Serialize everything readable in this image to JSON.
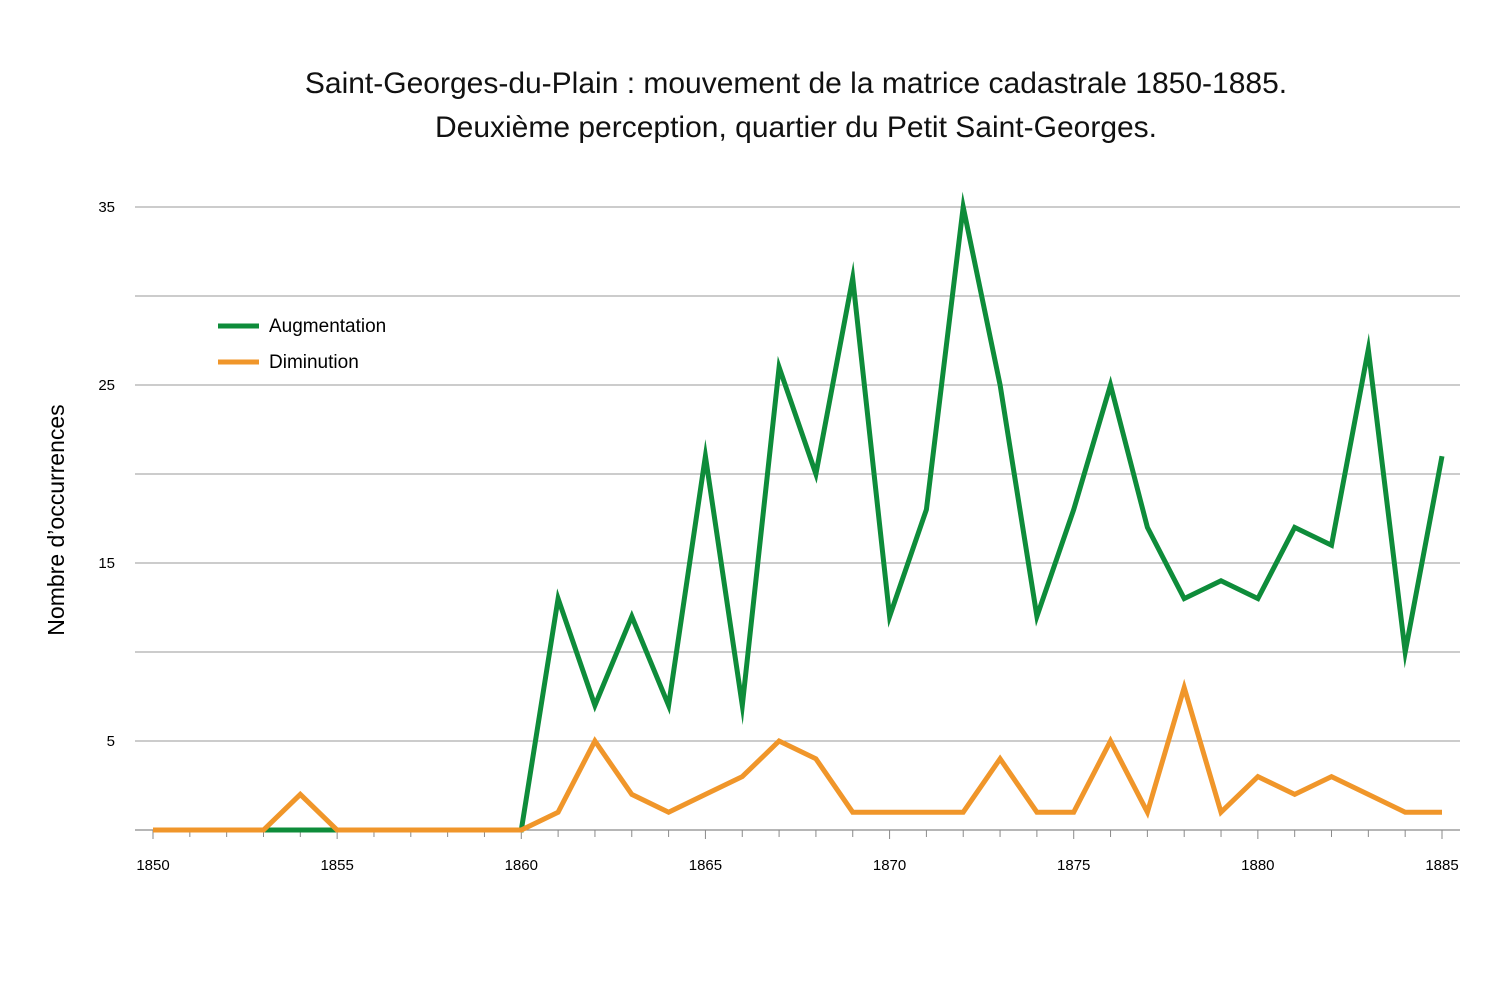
{
  "chart_data": {
    "type": "line",
    "title": "Saint-Georges-du-Plain : mouvement de la matrice cadastrale 1850-1885.",
    "subtitle": "Deuxième perception, quartier du Petit Saint-Georges.",
    "xlabel": "",
    "ylabel": "Nombre d’occurrences",
    "x": [
      1850,
      1851,
      1852,
      1853,
      1854,
      1855,
      1856,
      1857,
      1858,
      1859,
      1860,
      1861,
      1862,
      1863,
      1864,
      1865,
      1866,
      1867,
      1868,
      1869,
      1870,
      1871,
      1872,
      1873,
      1874,
      1875,
      1876,
      1877,
      1878,
      1879,
      1880,
      1881,
      1882,
      1883,
      1884,
      1885
    ],
    "xlim": [
      1850,
      1885
    ],
    "ylim": [
      0,
      35
    ],
    "x_ticks": [
      1850,
      1855,
      1860,
      1865,
      1870,
      1875,
      1880,
      1885
    ],
    "y_tick_labels": [
      5,
      15,
      25,
      35
    ],
    "y_gridlines": [
      5,
      10,
      15,
      20,
      25,
      30,
      35
    ],
    "grid": true,
    "legend_position": "top-left",
    "series": [
      {
        "name": "Augmentation",
        "color": "#0e8c3a",
        "values": [
          0,
          0,
          0,
          0,
          0,
          0,
          0,
          0,
          0,
          0,
          0,
          13,
          7,
          12,
          7,
          21,
          7,
          26,
          20,
          31,
          12,
          18,
          35,
          25,
          12,
          18,
          25,
          17,
          13,
          14,
          13,
          17,
          16,
          27,
          10,
          21
        ]
      },
      {
        "name": "Diminution",
        "color": "#f0962a",
        "values": [
          0,
          0,
          0,
          0,
          2,
          0,
          0,
          0,
          0,
          0,
          0,
          1,
          5,
          2,
          1,
          2,
          3,
          5,
          4,
          1,
          1,
          1,
          1,
          4,
          1,
          1,
          5,
          1,
          8,
          1,
          3,
          2,
          3,
          2,
          1,
          1
        ]
      }
    ]
  }
}
